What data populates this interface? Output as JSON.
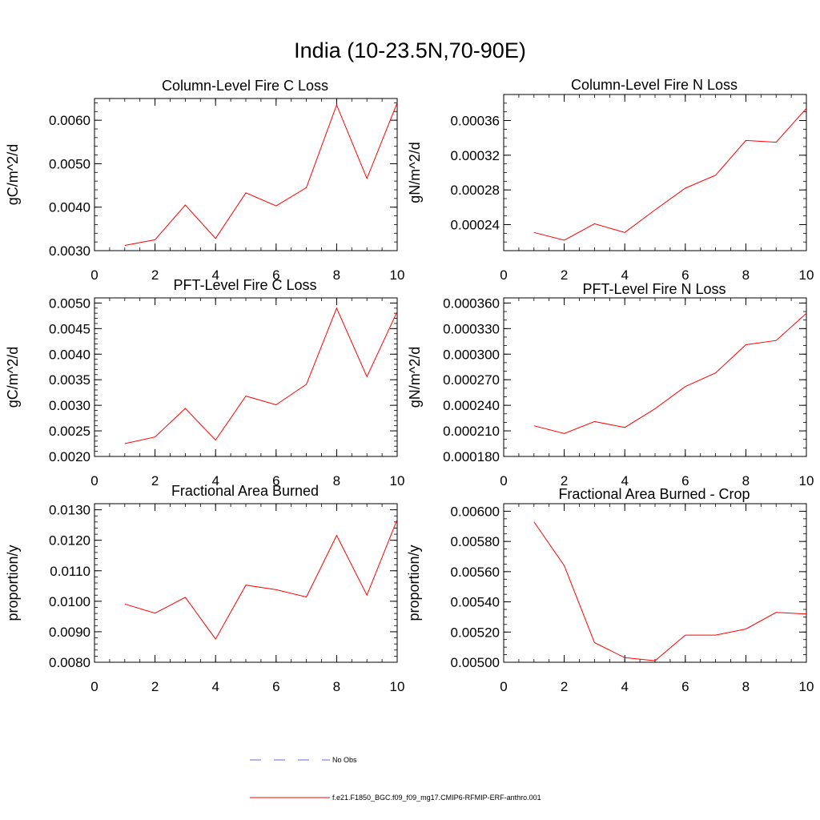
{
  "title": "India (10-23.5N,70-90E)",
  "colors": {
    "series": "#ff0000",
    "obs": "#6a6ad8",
    "axis": "#000000"
  },
  "legend": {
    "entries": [
      {
        "label": "No Obs",
        "style": "dashed",
        "color": "#6a6ad8"
      },
      {
        "label": "f.e21.F1850_BGC.f09_f09_mg17.CMIP6-RFMIP-ERF-anthro.001",
        "style": "solid",
        "color": "#ff0000"
      }
    ]
  },
  "chart_data": [
    {
      "type": "line",
      "title": "Column-Level Fire C Loss",
      "xlabel": "",
      "ylabel": "gC/m^2/d",
      "xlim": [
        0,
        10
      ],
      "ylim": [
        0.003,
        0.0065
      ],
      "xticks": [
        0,
        2,
        4,
        6,
        8,
        10
      ],
      "xtick_labels": [
        "0",
        "2",
        "4",
        "6",
        "8",
        "10"
      ],
      "yticks": [
        0.003,
        0.004,
        0.005,
        0.006
      ],
      "ytick_labels": [
        "0.0030",
        "0.0040",
        "0.0050",
        "0.0060"
      ],
      "yminor": 0.0002,
      "series": [
        {
          "name": "f.e21.F1850_BGC.f09_f09_mg17.CMIP6-RFMIP-ERF-anthro.001",
          "x": [
            1,
            2,
            3,
            4,
            5,
            6,
            7,
            8,
            9,
            10
          ],
          "values": [
            0.00312,
            0.00325,
            0.00405,
            0.00328,
            0.00433,
            0.00403,
            0.00445,
            0.00635,
            0.00466,
            0.0064
          ]
        }
      ]
    },
    {
      "type": "line",
      "title": "Column-Level Fire N Loss",
      "xlabel": "",
      "ylabel": "gN/m^2/d",
      "xlim": [
        0,
        10
      ],
      "ylim": [
        0.00021,
        0.00039
      ],
      "xticks": [
        0,
        2,
        4,
        6,
        8,
        10
      ],
      "xtick_labels": [
        "0",
        "2",
        "4",
        "6",
        "8",
        "10"
      ],
      "yticks": [
        0.00024,
        0.00028,
        0.00032,
        0.00036
      ],
      "ytick_labels": [
        "0.00024",
        "0.00028",
        "0.00032",
        "0.00036"
      ],
      "yminor": 1e-05,
      "series": [
        {
          "name": "f.e21.F1850_BGC.f09_f09_mg17.CMIP6-RFMIP-ERF-anthro.001",
          "x": [
            1,
            2,
            3,
            4,
            5,
            6,
            7,
            8,
            9,
            10
          ],
          "values": [
            0.000231,
            0.000222,
            0.000241,
            0.000231,
            0.000257,
            0.000282,
            0.000297,
            0.000337,
            0.000335,
            0.000374
          ]
        }
      ]
    },
    {
      "type": "line",
      "title": "PFT-Level Fire C Loss",
      "xlabel": "",
      "ylabel": "gC/m^2/d",
      "xlim": [
        0,
        10
      ],
      "ylim": [
        0.002,
        0.0051
      ],
      "xticks": [
        0,
        2,
        4,
        6,
        8,
        10
      ],
      "xtick_labels": [
        "0",
        "2",
        "4",
        "6",
        "8",
        "10"
      ],
      "yticks": [
        0.002,
        0.0025,
        0.003,
        0.0035,
        0.004,
        0.0045,
        0.005
      ],
      "ytick_labels": [
        "0.0020",
        "0.0025",
        "0.0030",
        "0.0035",
        "0.0040",
        "0.0045",
        "0.0050"
      ],
      "yminor": 0.0001,
      "series": [
        {
          "name": "f.e21.F1850_BGC.f09_f09_mg17.CMIP6-RFMIP-ERF-anthro.001",
          "x": [
            1,
            2,
            3,
            4,
            5,
            6,
            7,
            8,
            9,
            10
          ],
          "values": [
            0.00225,
            0.00238,
            0.00294,
            0.00232,
            0.00318,
            0.00301,
            0.00341,
            0.0049,
            0.00356,
            0.00483
          ]
        }
      ]
    },
    {
      "type": "line",
      "title": "PFT-Level Fire N Loss",
      "xlabel": "",
      "ylabel": "gN/m^2/d",
      "xlim": [
        0,
        10
      ],
      "ylim": [
        0.00018,
        0.000366
      ],
      "xticks": [
        0,
        2,
        4,
        6,
        8,
        10
      ],
      "xtick_labels": [
        "0",
        "2",
        "4",
        "6",
        "8",
        "10"
      ],
      "yticks": [
        0.00018,
        0.00021,
        0.00024,
        0.00027,
        0.0003,
        0.00033,
        0.00036
      ],
      "ytick_labels": [
        "0.000180",
        "0.000210",
        "0.000240",
        "0.000270",
        "0.000300",
        "0.000330",
        "0.000360"
      ],
      "yminor": 1e-05,
      "series": [
        {
          "name": "f.e21.F1850_BGC.f09_f09_mg17.CMIP6-RFMIP-ERF-anthro.001",
          "x": [
            1,
            2,
            3,
            4,
            5,
            6,
            7,
            8,
            9,
            10
          ],
          "values": [
            0.000216,
            0.000207,
            0.000221,
            0.000214,
            0.000236,
            0.000262,
            0.000278,
            0.000311,
            0.000316,
            0.000348
          ]
        }
      ]
    },
    {
      "type": "line",
      "title": "Fractional Area Burned",
      "xlabel": "",
      "ylabel": "proportion/y",
      "xlim": [
        0,
        10
      ],
      "ylim": [
        0.008,
        0.0132
      ],
      "xticks": [
        0,
        2,
        4,
        6,
        8,
        10
      ],
      "xtick_labels": [
        "0",
        "2",
        "4",
        "6",
        "8",
        "10"
      ],
      "yticks": [
        0.008,
        0.009,
        0.01,
        0.011,
        0.012,
        0.013
      ],
      "ytick_labels": [
        "0.0080",
        "0.0090",
        "0.0100",
        "0.0110",
        "0.0120",
        "0.0130"
      ],
      "yminor": 0.0002,
      "series": [
        {
          "name": "f.e21.F1850_BGC.f09_f09_mg17.CMIP6-RFMIP-ERF-anthro.001",
          "x": [
            1,
            2,
            3,
            4,
            5,
            6,
            7,
            8,
            9,
            10
          ],
          "values": [
            0.00991,
            0.00961,
            0.01013,
            0.00876,
            0.01053,
            0.01038,
            0.01014,
            0.01216,
            0.0102,
            0.01268
          ]
        }
      ]
    },
    {
      "type": "line",
      "title": "Fractional Area Burned - Crop",
      "xlabel": "",
      "ylabel": "proportion/y",
      "xlim": [
        0,
        10
      ],
      "ylim": [
        0.005,
        0.00605
      ],
      "xticks": [
        0,
        2,
        4,
        6,
        8,
        10
      ],
      "xtick_labels": [
        "0",
        "2",
        "4",
        "6",
        "8",
        "10"
      ],
      "yticks": [
        0.005,
        0.0052,
        0.0054,
        0.0056,
        0.0058,
        0.006
      ],
      "ytick_labels": [
        "0.00500",
        "0.00520",
        "0.00540",
        "0.00560",
        "0.00580",
        "0.00600"
      ],
      "yminor": 5e-05,
      "series": [
        {
          "name": "f.e21.F1850_BGC.f09_f09_mg17.CMIP6-RFMIP-ERF-anthro.001",
          "x": [
            1,
            2,
            3,
            4,
            5,
            6,
            7,
            8,
            9,
            10
          ],
          "values": [
            0.00593,
            0.00564,
            0.00513,
            0.00503,
            0.00501,
            0.00518,
            0.00518,
            0.00522,
            0.00533,
            0.00532
          ]
        }
      ]
    }
  ]
}
